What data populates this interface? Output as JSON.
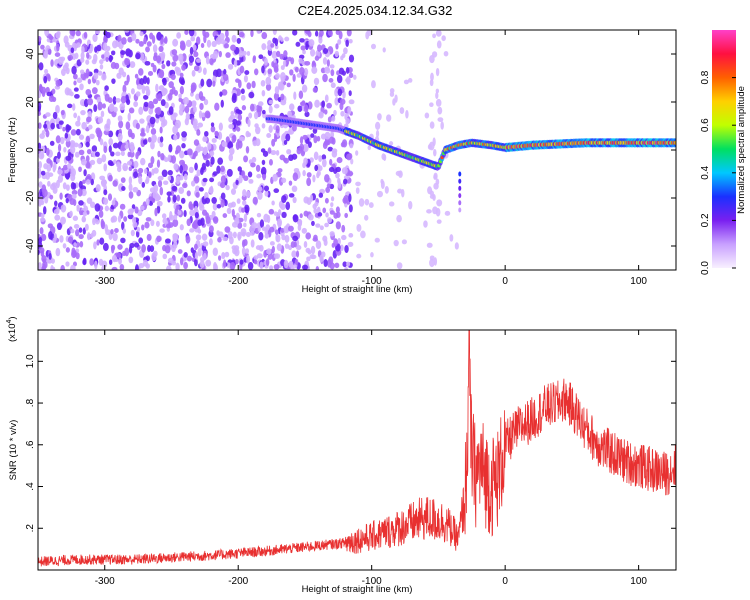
{
  "figure": {
    "title": "C2E4.2025.034.12.34.G32"
  },
  "colors": {
    "snr_line": "#e83030",
    "colorbar": [
      "#f8f0ff",
      "#c8a0ff",
      "#7a20f0",
      "#1a30ff",
      "#00c8ff",
      "#00e060",
      "#c0ff00",
      "#ffd000",
      "#ff6000",
      "#ff1040",
      "#ff40c8"
    ]
  },
  "chart_data": [
    {
      "type": "heatmap",
      "title": "C2E4.2025.034.12.34.G32",
      "xlabel": "Height of straight line (km)",
      "ylabel": "Frequency (Hz)",
      "xlim": [
        -350,
        128
      ],
      "ylim": [
        -50,
        50
      ],
      "xticks": [
        -300,
        -200,
        -100,
        0,
        100
      ],
      "yticks": [
        -40,
        -20,
        0,
        20,
        40
      ],
      "grid": false,
      "ridge": {
        "x": [
          -175,
          -150,
          -125,
          -110,
          -95,
          -80,
          -65,
          -50,
          -45,
          -35,
          -25,
          -10,
          0,
          20,
          60,
          100,
          128
        ],
        "y": [
          13,
          11,
          9,
          6,
          2,
          -1,
          -4,
          -7,
          0,
          2,
          3,
          2,
          1,
          2,
          3,
          3,
          3
        ]
      },
      "colorbar": {
        "label": "Normalized spectral amplitude",
        "range": [
          0,
          1
        ],
        "ticks": [
          0.0,
          0.2,
          0.4,
          0.6,
          0.8
        ]
      }
    },
    {
      "type": "line",
      "xlabel": "Height of straight line (km)",
      "ylabel": "SNR (10 * v/v)",
      "multiplier": "(x10",
      "multiplier_exp": "4",
      "multiplier_close": ")",
      "xlim": [
        -350,
        128
      ],
      "ylim": [
        0,
        1.15
      ],
      "xticks": [
        -300,
        -200,
        -100,
        0,
        100
      ],
      "yticks": [
        0.2,
        0.4,
        0.6,
        0.8,
        1.0
      ],
      "grid": false,
      "series": [
        {
          "x": [
            -350,
            -320,
            -280,
            -250,
            -220,
            -200,
            -180,
            -150,
            -120,
            -100,
            -80,
            -60,
            -45,
            -35,
            -30,
            -28,
            -27,
            -26,
            -25,
            -22,
            -18,
            -15,
            -10,
            -5,
            0,
            10,
            20,
            30,
            40,
            45,
            50,
            60,
            70,
            80,
            90,
            100,
            110,
            120,
            128
          ],
          "y": [
            0.04,
            0.05,
            0.05,
            0.06,
            0.07,
            0.08,
            0.09,
            0.11,
            0.13,
            0.16,
            0.2,
            0.25,
            0.23,
            0.15,
            0.35,
            0.65,
            1.1,
            0.7,
            0.55,
            0.45,
            0.5,
            0.45,
            0.4,
            0.45,
            0.6,
            0.68,
            0.72,
            0.78,
            0.8,
            0.82,
            0.78,
            0.68,
            0.6,
            0.56,
            0.52,
            0.5,
            0.48,
            0.46,
            0.5
          ]
        }
      ]
    }
  ]
}
